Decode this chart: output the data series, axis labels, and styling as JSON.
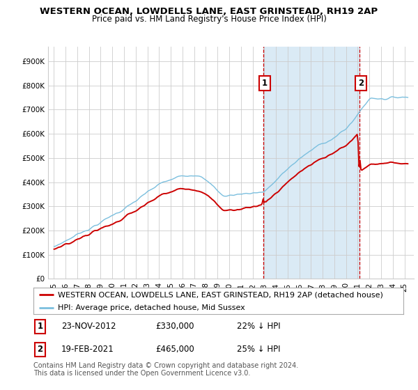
{
  "title": "WESTERN OCEAN, LOWDELLS LANE, EAST GRINSTEAD, RH19 2AP",
  "subtitle": "Price paid vs. HM Land Registry's House Price Index (HPI)",
  "yticks": [
    0,
    100000,
    200000,
    300000,
    400000,
    500000,
    600000,
    700000,
    800000,
    900000
  ],
  "ytick_labels": [
    "£0",
    "£100K",
    "£200K",
    "£300K",
    "£400K",
    "£500K",
    "£600K",
    "£700K",
    "£800K",
    "£900K"
  ],
  "ylim": [
    0,
    960000
  ],
  "xlim_start": 1994.5,
  "xlim_end": 2025.8,
  "hpi_color": "#7bbfde",
  "price_color": "#cc0000",
  "sale1_year": 2012.9,
  "sale1_price": 330000,
  "sale2_year": 2021.13,
  "sale2_price": 465000,
  "vline1_x": 2012.9,
  "vline2_x": 2021.13,
  "legend_property_label": "WESTERN OCEAN, LOWDELLS LANE, EAST GRINSTEAD, RH19 2AP (detached house)",
  "legend_hpi_label": "HPI: Average price, detached house, Mid Sussex",
  "note1_label": "1",
  "note1_date": "23-NOV-2012",
  "note1_price": "£330,000",
  "note1_hpi": "22% ↓ HPI",
  "note2_label": "2",
  "note2_date": "19-FEB-2021",
  "note2_price": "£465,000",
  "note2_hpi": "25% ↓ HPI",
  "footer": "Contains HM Land Registry data © Crown copyright and database right 2024.\nThis data is licensed under the Open Government Licence v3.0.",
  "background_color": "#ffffff",
  "grid_color": "#cccccc",
  "shaded_region_color": "#daeaf5",
  "title_fontsize": 9.5,
  "subtitle_fontsize": 8.5,
  "tick_fontsize": 7.5,
  "legend_fontsize": 8,
  "note_fontsize": 8.5,
  "footer_fontsize": 7
}
